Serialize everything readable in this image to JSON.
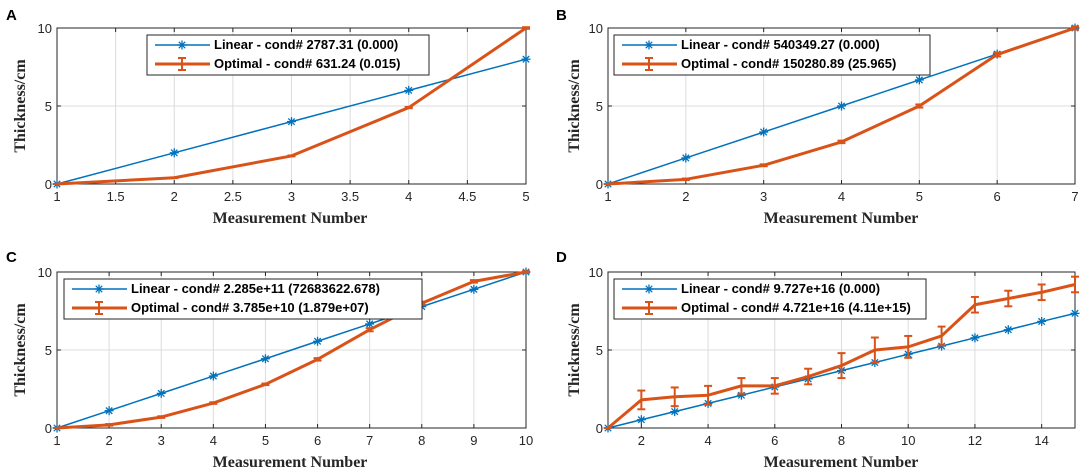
{
  "colors": {
    "linear": "#0072BD",
    "optimal": "#D95319",
    "grid": "#dcdcdc",
    "axis": "#262626"
  },
  "chart_data": [
    {
      "panel": "A",
      "type": "line",
      "xlabel": "Measurement Number",
      "ylabel": "Thickness/cm",
      "xlim": [
        1,
        5
      ],
      "ylim": [
        0,
        10
      ],
      "xticks": [
        1,
        1.5,
        2,
        2.5,
        3,
        3.5,
        4,
        4.5,
        5
      ],
      "xticklabels": [
        "1",
        "1.5",
        "2",
        "2.5",
        "3",
        "3.5",
        "4",
        "4.5",
        "5"
      ],
      "yticks": [
        0,
        5,
        10
      ],
      "yticklabels": [
        "0",
        "5",
        "10"
      ],
      "series": [
        {
          "name": "Linear - cond# 2787.31 (0.000)",
          "x": [
            1,
            2,
            3,
            4,
            5
          ],
          "y": [
            0,
            2,
            4,
            6,
            8
          ],
          "err": [
            0,
            0,
            0,
            0,
            0
          ]
        },
        {
          "name": "Optimal - cond# 631.24 (0.015)",
          "x": [
            1,
            2,
            3,
            4,
            5
          ],
          "y": [
            0,
            0.4,
            1.8,
            4.9,
            10
          ],
          "err": [
            0,
            0.02,
            0.03,
            0.04,
            0.05
          ]
        }
      ]
    },
    {
      "panel": "B",
      "type": "line",
      "xlabel": "Measurement Number",
      "ylabel": "Thickness/cm",
      "xlim": [
        1,
        7
      ],
      "ylim": [
        0,
        10
      ],
      "xticks": [
        1,
        2,
        3,
        4,
        5,
        6,
        7
      ],
      "xticklabels": [
        "1",
        "2",
        "3",
        "4",
        "5",
        "6",
        "7"
      ],
      "yticks": [
        0,
        5,
        10
      ],
      "yticklabels": [
        "0",
        "5",
        "10"
      ],
      "series": [
        {
          "name": "Linear - cond# 540349.27 (0.000)",
          "x": [
            1,
            2,
            3,
            4,
            5,
            6,
            7
          ],
          "y": [
            0,
            1.67,
            3.33,
            5,
            6.67,
            8.33,
            10
          ],
          "err": [
            0,
            0,
            0,
            0,
            0,
            0,
            0
          ]
        },
        {
          "name": "Optimal - cond# 150280.89 (25.965)",
          "x": [
            1,
            2,
            3,
            4,
            5,
            6,
            7
          ],
          "y": [
            0,
            0.3,
            1.2,
            2.7,
            5.0,
            8.3,
            10
          ],
          "err": [
            0,
            0.05,
            0.06,
            0.08,
            0.1,
            0.12,
            0.1
          ]
        }
      ]
    },
    {
      "panel": "C",
      "type": "line",
      "xlabel": "Measurement Number",
      "ylabel": "Thickness/cm",
      "xlim": [
        1,
        10
      ],
      "ylim": [
        0,
        10
      ],
      "xticks": [
        1,
        2,
        3,
        4,
        5,
        6,
        7,
        8,
        9,
        10
      ],
      "xticklabels": [
        "1",
        "2",
        "3",
        "4",
        "5",
        "6",
        "7",
        "8",
        "9",
        "10"
      ],
      "yticks": [
        0,
        5,
        10
      ],
      "yticklabels": [
        "0",
        "5",
        "10"
      ],
      "series": [
        {
          "name": "Linear - cond# 2.285e+11 (72683622.678)",
          "x": [
            1,
            2,
            3,
            4,
            5,
            6,
            7,
            8,
            9,
            10
          ],
          "y": [
            0,
            1.11,
            2.22,
            3.33,
            4.44,
            5.56,
            6.67,
            7.78,
            8.89,
            10
          ],
          "err": [
            0,
            0,
            0,
            0,
            0,
            0,
            0,
            0,
            0,
            0
          ]
        },
        {
          "name": "Optimal - cond# 3.785e+10 (1.879e+07)",
          "x": [
            1,
            2,
            3,
            4,
            5,
            6,
            7,
            8,
            9,
            10
          ],
          "y": [
            0,
            0.2,
            0.7,
            1.6,
            2.8,
            4.4,
            6.3,
            8.0,
            9.4,
            10
          ],
          "err": [
            0,
            0.05,
            0.05,
            0.05,
            0.05,
            0.08,
            0.1,
            0.1,
            0.08,
            0.05
          ]
        }
      ]
    },
    {
      "panel": "D",
      "type": "line",
      "xlabel": "Measurement Number",
      "ylabel": "Thickness/cm",
      "xlim": [
        1,
        15
      ],
      "ylim": [
        0,
        10
      ],
      "xticks": [
        2,
        4,
        6,
        8,
        10,
        12,
        14
      ],
      "xticklabels": [
        "2",
        "4",
        "6",
        "8",
        "10",
        "12",
        "14"
      ],
      "yticks": [
        0,
        5,
        10
      ],
      "yticklabels": [
        "0",
        "5",
        "10"
      ],
      "series": [
        {
          "name": "Linear - cond# 9.727e+16 (0.000)",
          "x": [
            1,
            2,
            3,
            4,
            5,
            6,
            7,
            8,
            9,
            10,
            11,
            12,
            13,
            14,
            15
          ],
          "y": [
            0,
            0.53,
            1.05,
            1.58,
            2.1,
            2.63,
            3.15,
            3.68,
            4.2,
            4.73,
            5.25,
            5.78,
            6.3,
            6.83,
            7.35
          ],
          "err": [
            0,
            0,
            0,
            0,
            0,
            0,
            0,
            0,
            0,
            0,
            0,
            0,
            0,
            0,
            0
          ]
        },
        {
          "name": "Optimal - cond# 4.721e+16 (4.11e+15)",
          "x": [
            1,
            2,
            3,
            4,
            5,
            6,
            7,
            8,
            9,
            10,
            11,
            12,
            13,
            14,
            15
          ],
          "y": [
            0,
            1.8,
            2.0,
            2.1,
            2.7,
            2.7,
            3.3,
            4.0,
            5.0,
            5.2,
            5.9,
            7.9,
            8.3,
            8.7,
            9.2
          ],
          "err": [
            0,
            0.6,
            0.6,
            0.6,
            0.5,
            0.5,
            0.5,
            0.8,
            0.8,
            0.7,
            0.6,
            0.5,
            0.5,
            0.5,
            0.5
          ]
        }
      ]
    }
  ]
}
